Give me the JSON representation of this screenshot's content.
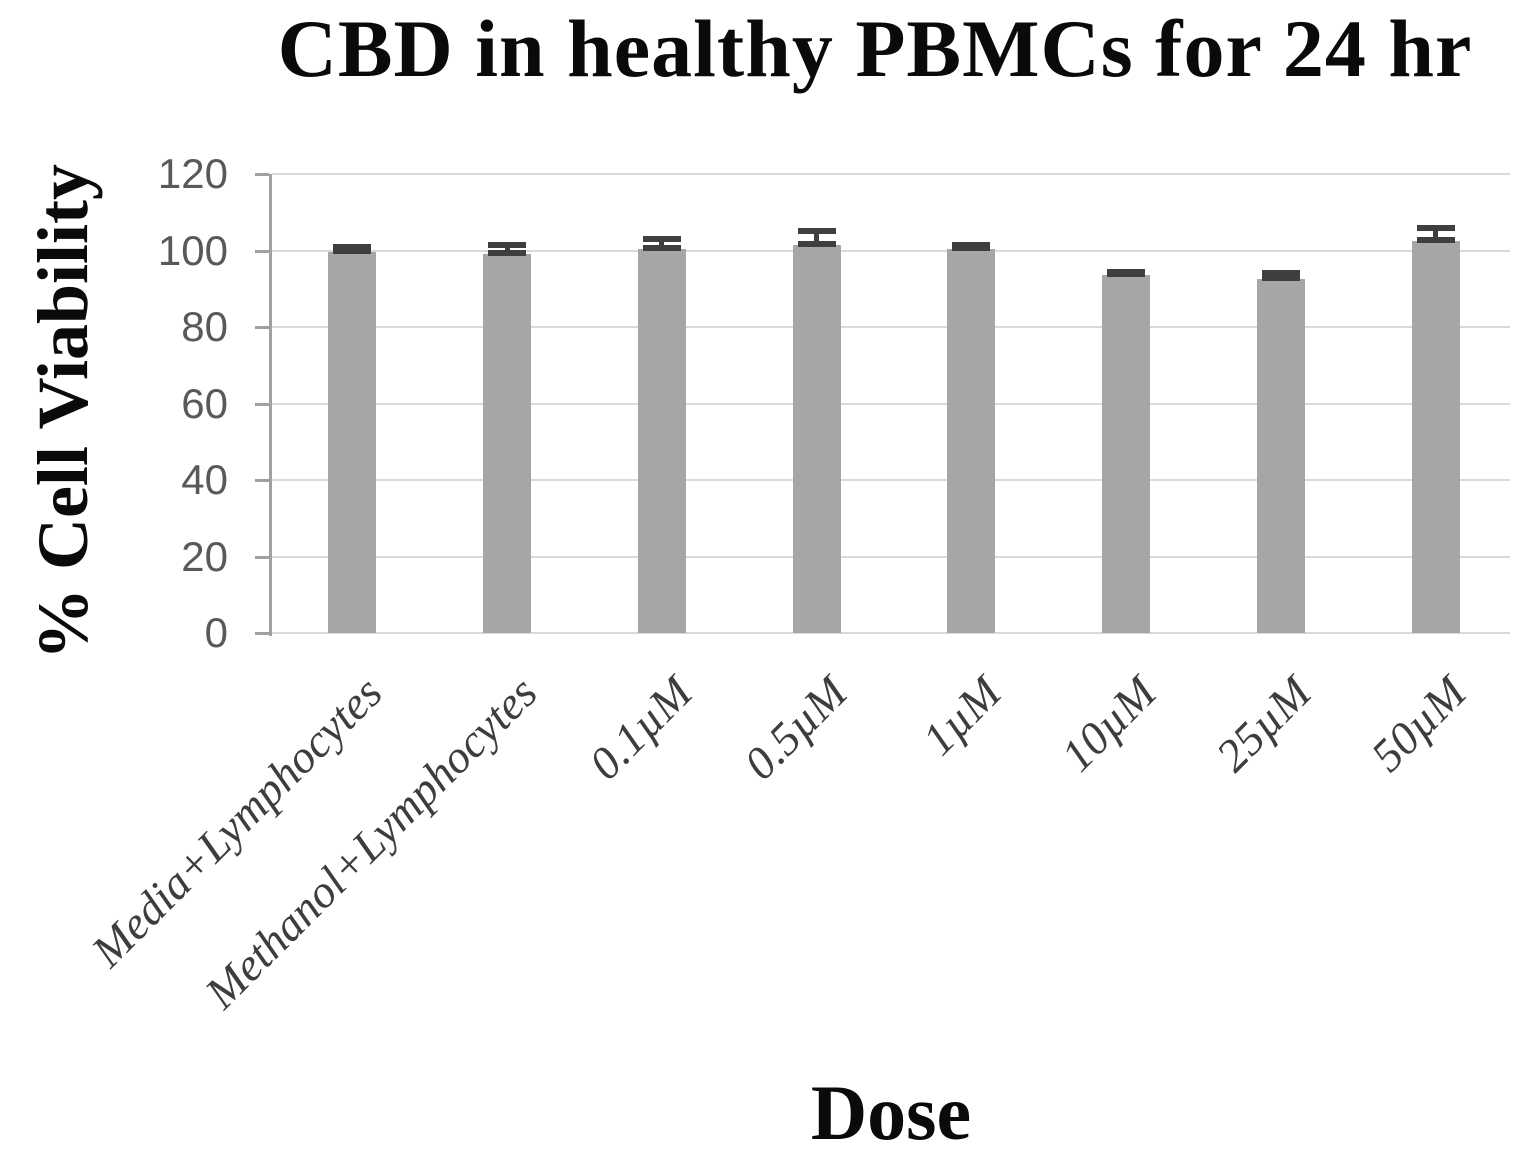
{
  "figure": {
    "title": "CBD in healthy PBMCs for 24 hr",
    "x_axis_title": "Dose",
    "y_axis_title": "% Cell Viability"
  },
  "chart_data": {
    "type": "bar",
    "title": "CBD in healthy PBMCs for 24 hr",
    "xlabel": "Dose",
    "ylabel": "% Cell Viability",
    "categories": [
      "Media+Lymphocytes",
      "Methanol+Lymphocytes",
      "0.1µM",
      "0.5µM",
      "1µM",
      "10µM",
      "25µM",
      "50µM"
    ],
    "values": [
      99.5,
      99,
      100.5,
      101.5,
      100.5,
      93.5,
      92.5,
      102.5
    ],
    "error_plus": [
      1.5,
      2.5,
      2.5,
      3.5,
      1,
      1,
      1.5,
      3.5
    ],
    "ylim": [
      0,
      120
    ],
    "yticks": [
      0,
      20,
      40,
      60,
      80,
      100,
      120
    ],
    "grid": true,
    "legend": false,
    "series_count": 1,
    "bar_color": "#a6a6a6",
    "error_bar_color": "#3f3f3f",
    "gridline_color": "#d9d9d9",
    "axis_line_color": "#a0a0a0",
    "ytick_label_color": "#595959",
    "xtick_label_color": "#3d3d3d",
    "title_color": "#0a0a0a"
  }
}
